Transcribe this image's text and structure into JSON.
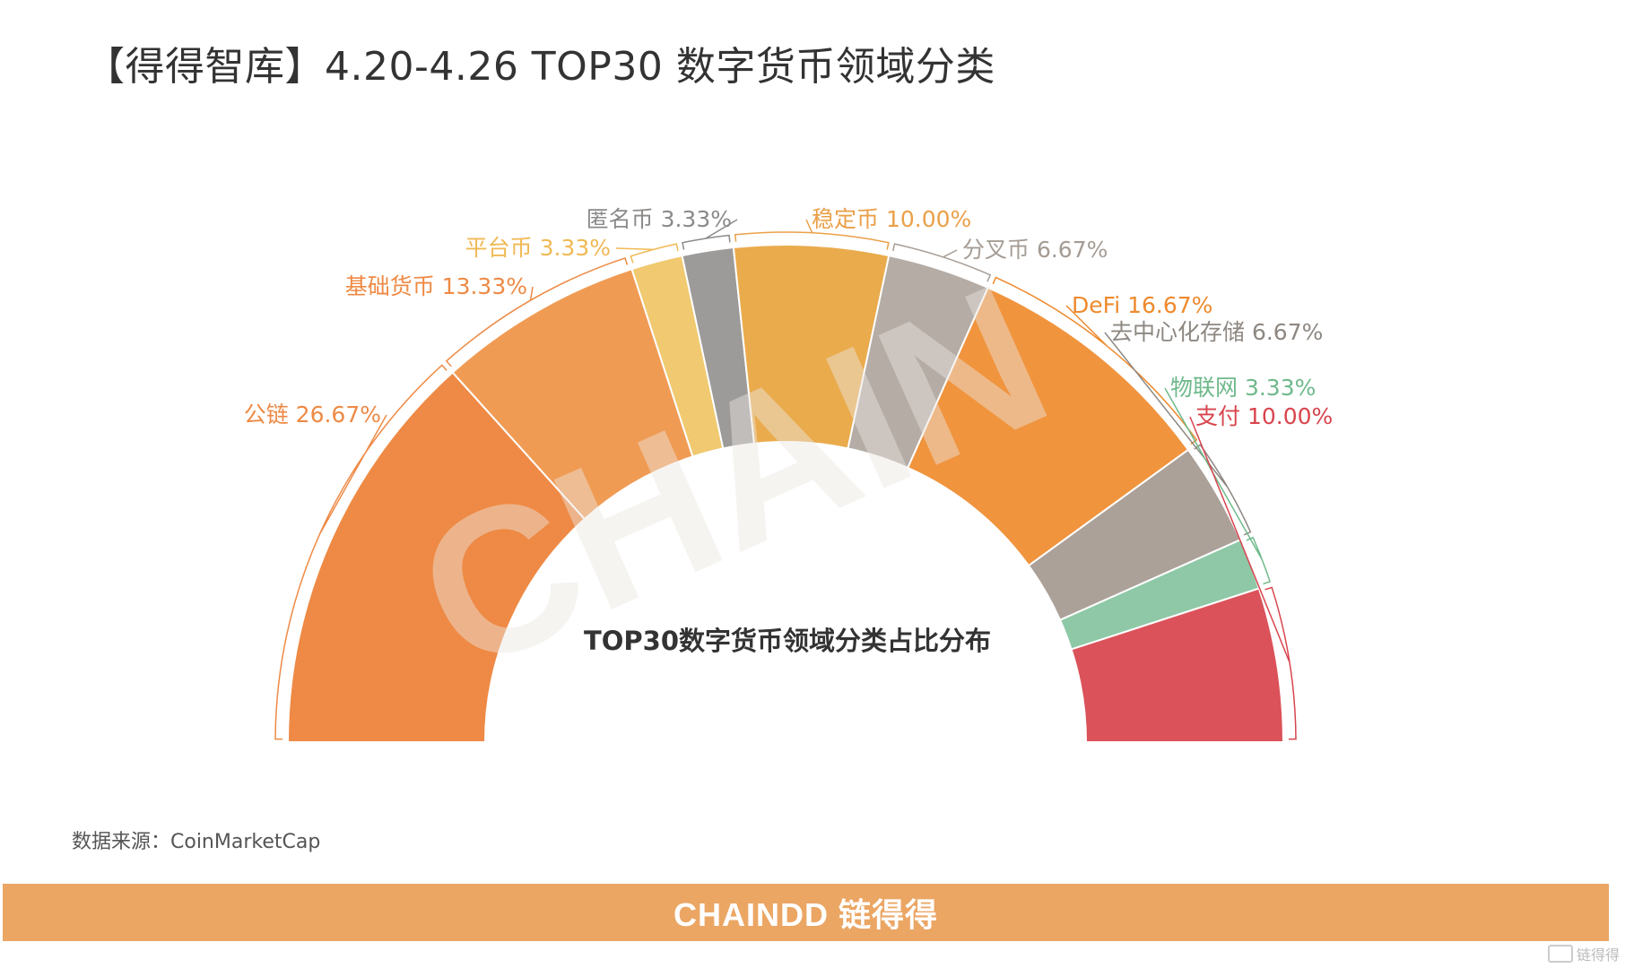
{
  "page": {
    "title": "【得得智库】4.20-4.26  TOP30 数字货币领域分类",
    "source": "数据来源：CoinMarketCap",
    "footer_brand": "CHAINDD 链得得",
    "watermark": "CHAIN",
    "corner_logo": "链得得"
  },
  "chart_data": {
    "type": "pie",
    "variant": "half-donut",
    "title": "TOP30数字货币领域分类占比分布",
    "slices": [
      {
        "label": "公链",
        "value": 26.67,
        "display": "公链 26.67%",
        "color": "#ee8a45",
        "label_color": "#ee8a45"
      },
      {
        "label": "基础货币",
        "value": 13.33,
        "display": "基础货币 13.33%",
        "color": "#f09b54",
        "label_color": "#ee8a45"
      },
      {
        "label": "平台币",
        "value": 3.33,
        "display": "平台币 3.33%",
        "color": "#f0c970",
        "label_color": "#f0b954"
      },
      {
        "label": "匿名币",
        "value": 3.33,
        "display": "匿名币 3.33%",
        "color": "#9d9b9a",
        "label_color": "#8c8a89"
      },
      {
        "label": "稳定币",
        "value": 10.0,
        "display": "稳定币 10.00%",
        "color": "#eaab4d",
        "label_color": "#eaa048"
      },
      {
        "label": "分叉币",
        "value": 6.67,
        "display": "分叉币 6.67%",
        "color": "#b4aca5",
        "label_color": "#a59c94"
      },
      {
        "label": "DeFi",
        "value": 16.67,
        "display": "DeFi 16.67%",
        "color": "#f0943e",
        "label_color": "#ee8a2e"
      },
      {
        "label": "去中心化存储",
        "value": 6.67,
        "display": "去中心化存储 6.67%",
        "color": "#aba199",
        "label_color": "#8e8781"
      },
      {
        "label": "物联网",
        "value": 3.33,
        "display": "物联网 3.33%",
        "color": "#8fc8a6",
        "label_color": "#6fb98b"
      },
      {
        "label": "支付",
        "value": 10.0,
        "display": "支付 10.00%",
        "color": "#db525a",
        "label_color": "#d8454e"
      }
    ]
  }
}
